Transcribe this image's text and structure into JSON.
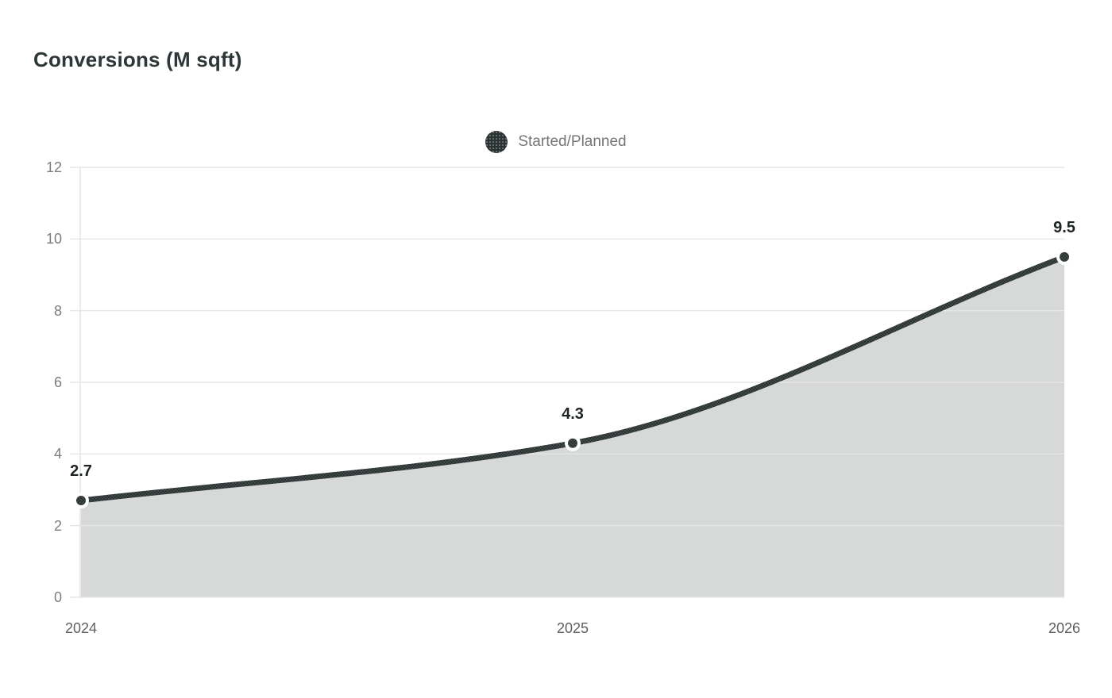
{
  "chart": {
    "title": "Conversions (M sqft)",
    "legend_label": "Started/Planned"
  },
  "colors": {
    "line": "#2b3232",
    "line_dot": "#5f6a69",
    "area_fill": "#d7d9d8",
    "marker_ring": "#ffffff",
    "grid": "#e6e6e6",
    "axis_border": "#e2e2e2",
    "y_tick_text": "#7b7d7e",
    "x_tick_text": "#5e6163",
    "point_label_text": "#1e2425",
    "title_text": "#2d3738",
    "legend_text": "#757575",
    "background": "#ffffff"
  },
  "chart_data": {
    "type": "area",
    "title": "Conversions (M sqft)",
    "categories": [
      "2024",
      "2025",
      "2026"
    ],
    "series": [
      {
        "name": "Started/Planned",
        "values": [
          2.7,
          4.3,
          9.5
        ]
      }
    ],
    "point_labels": [
      "2.7",
      "4.3",
      "9.5"
    ],
    "xlabel": "",
    "ylabel": "",
    "ylim": [
      0,
      12
    ],
    "y_ticks": [
      0,
      2,
      4,
      6,
      8,
      10,
      12
    ],
    "grid": true,
    "legend_position": "top-center",
    "line_style": "smooth-monotone"
  }
}
